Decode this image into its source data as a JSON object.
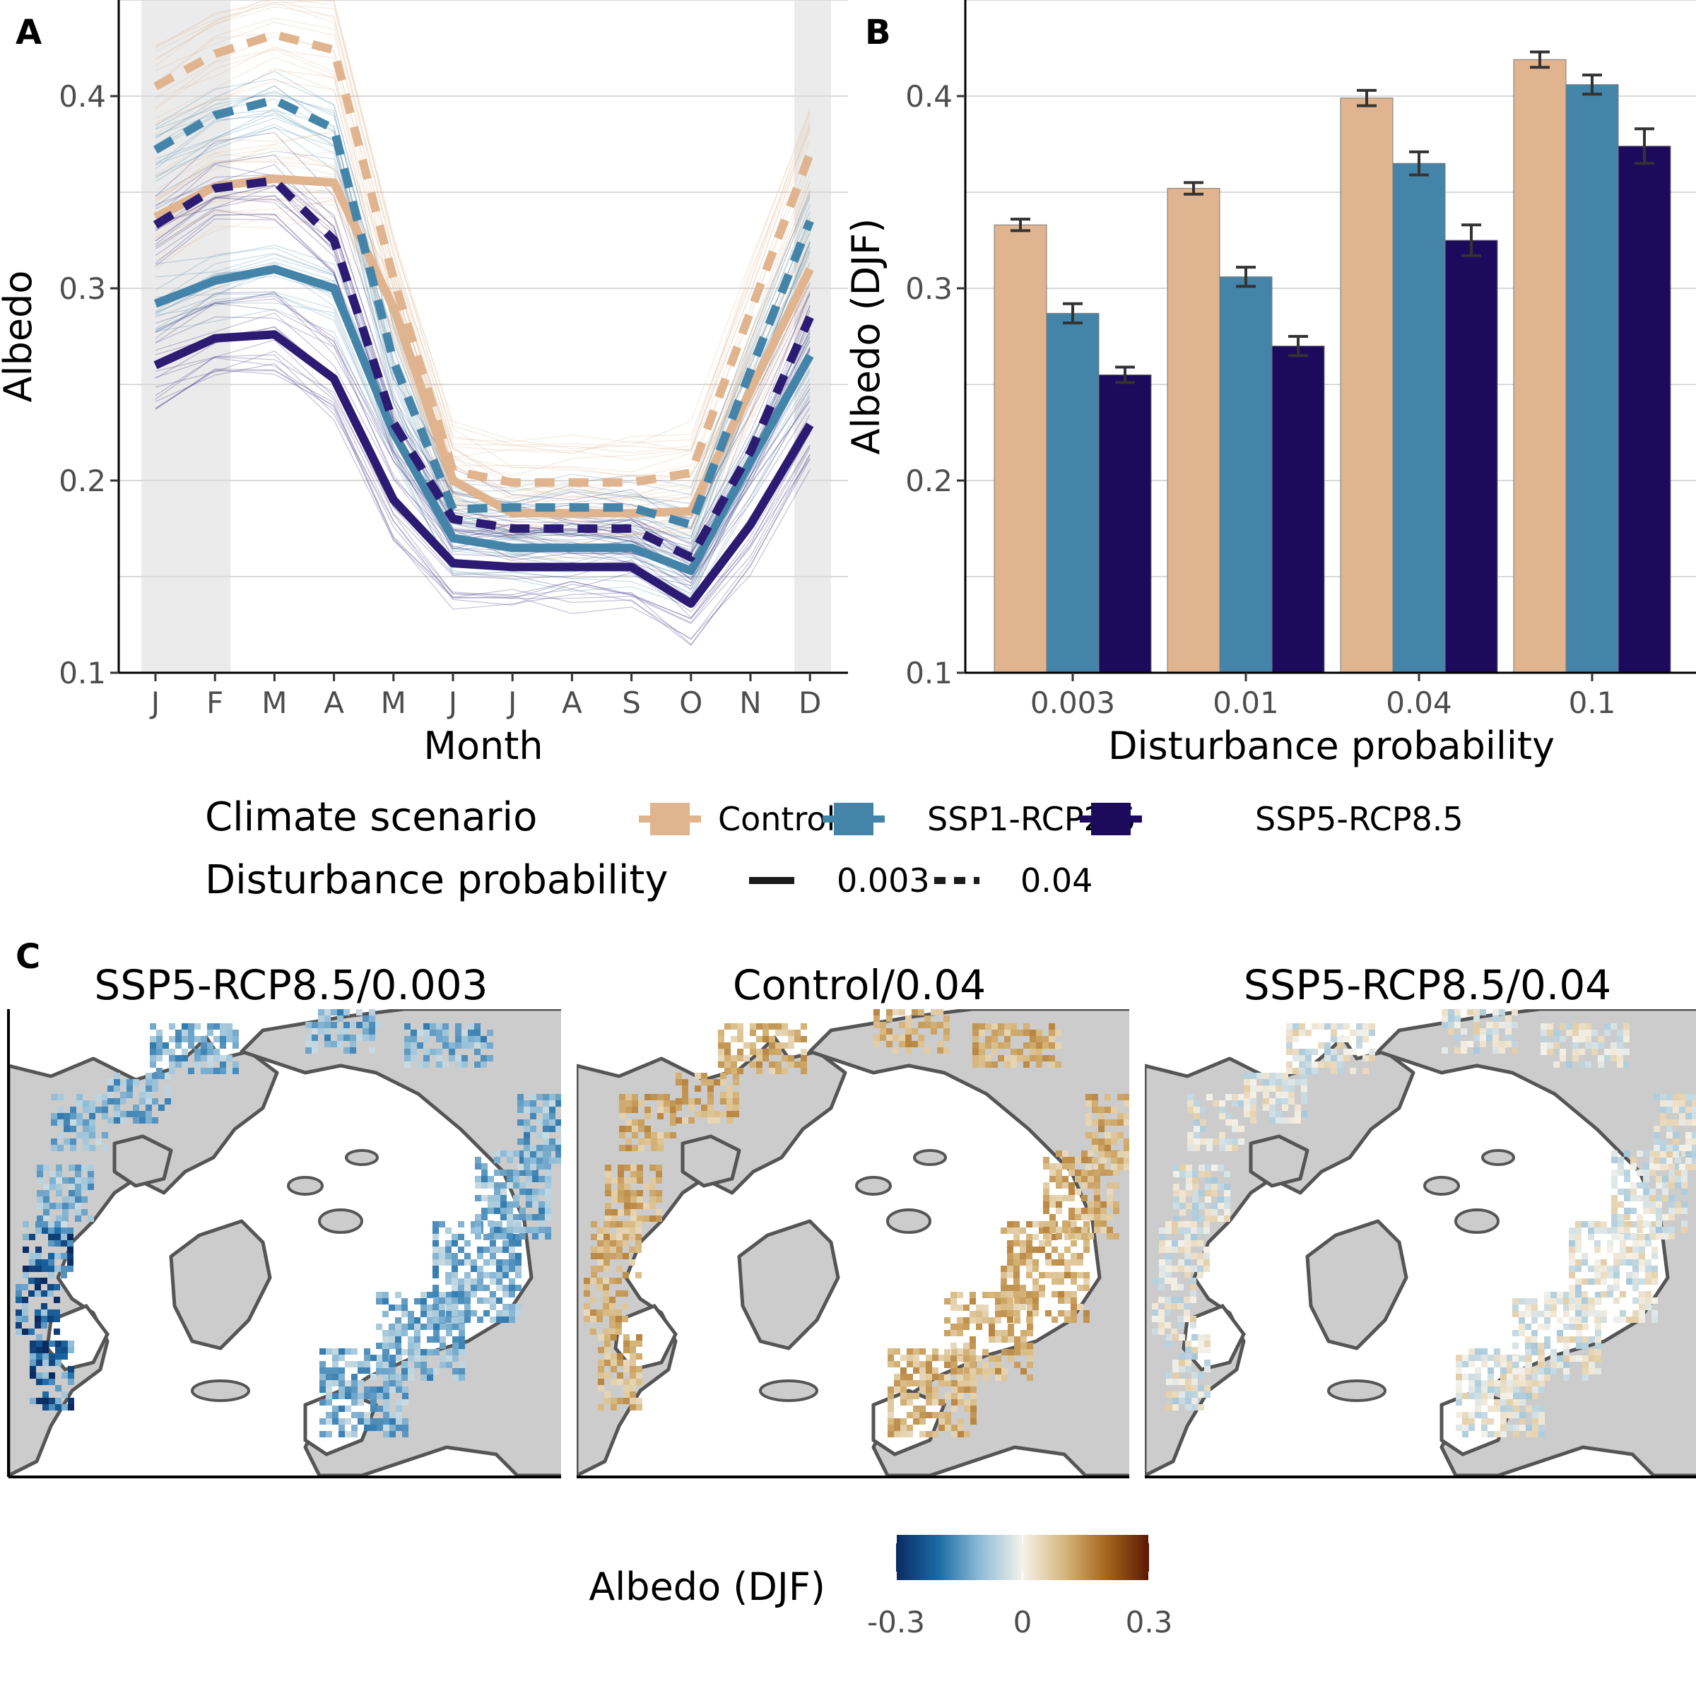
{
  "panel_labels": {
    "a": "A",
    "b": "B",
    "c": "C"
  },
  "colors": {
    "control": "#e0b48e",
    "ssp1": "#4584a9",
    "ssp5": "#1c0b5c",
    "grid": "#d9d9d9",
    "winter_shade": "#ebebeb",
    "land": "#cccccc",
    "coast": "#555555",
    "error_bar": "#333333"
  },
  "chart_data": [
    {
      "type": "line",
      "panel": "A",
      "xlabel": "Month",
      "ylabel": "Albedo",
      "x": [
        "J",
        "F",
        "M",
        "A",
        "M",
        "J",
        "J",
        "A",
        "S",
        "O",
        "N",
        "D"
      ],
      "ylim": [
        0.1,
        0.45
      ],
      "yticks": [
        0.1,
        0.2,
        0.3,
        0.4
      ],
      "grid": true,
      "shaded_months": [
        "J",
        "F",
        "D"
      ],
      "series": [
        {
          "scenario": "Control",
          "probability": "0.003",
          "color": "#e0b48e",
          "dashed": false,
          "values": [
            0.337,
            0.353,
            0.357,
            0.355,
            0.29,
            0.2,
            0.183,
            0.183,
            0.183,
            0.184,
            0.247,
            0.31
          ]
        },
        {
          "scenario": "Control",
          "probability": "0.04",
          "color": "#e0b48e",
          "dashed": true,
          "values": [
            0.405,
            0.422,
            0.432,
            0.424,
            0.305,
            0.205,
            0.199,
            0.199,
            0.199,
            0.204,
            0.288,
            0.37
          ]
        },
        {
          "scenario": "SSP1-RCP2.6",
          "probability": "0.003",
          "color": "#4584a9",
          "dashed": false,
          "values": [
            0.292,
            0.304,
            0.31,
            0.3,
            0.225,
            0.17,
            0.165,
            0.165,
            0.165,
            0.153,
            0.21,
            0.265
          ]
        },
        {
          "scenario": "SSP1-RCP2.6",
          "probability": "0.04",
          "color": "#4584a9",
          "dashed": true,
          "values": [
            0.372,
            0.39,
            0.398,
            0.383,
            0.262,
            0.185,
            0.186,
            0.186,
            0.186,
            0.177,
            0.257,
            0.335
          ]
        },
        {
          "scenario": "SSP5-RCP8.5",
          "probability": "0.003",
          "color": "#2b1b72",
          "dashed": false,
          "values": [
            0.26,
            0.274,
            0.276,
            0.253,
            0.19,
            0.157,
            0.155,
            0.155,
            0.155,
            0.136,
            0.177,
            0.229
          ]
        },
        {
          "scenario": "SSP5-RCP8.5",
          "probability": "0.04",
          "color": "#2b1b72",
          "dashed": true,
          "values": [
            0.333,
            0.352,
            0.356,
            0.325,
            0.23,
            0.18,
            0.175,
            0.175,
            0.175,
            0.16,
            0.215,
            0.285
          ]
        }
      ]
    },
    {
      "type": "bar",
      "panel": "B",
      "xlabel": "Disturbance probability",
      "ylabel": "Albedo (DJF)",
      "categories": [
        "0.003",
        "0.01",
        "0.04",
        "0.1"
      ],
      "ylim": [
        0.1,
        0.45
      ],
      "yticks": [
        0.1,
        0.2,
        0.3,
        0.4
      ],
      "grid": true,
      "series": [
        {
          "name": "Control",
          "color": "#e0b48e",
          "values": [
            0.333,
            0.352,
            0.399,
            0.419
          ],
          "errors": [
            0.003,
            0.003,
            0.004,
            0.004
          ]
        },
        {
          "name": "SSP1-RCP2.6",
          "color": "#4584a9",
          "values": [
            0.287,
            0.306,
            0.365,
            0.406
          ],
          "errors": [
            0.005,
            0.005,
            0.006,
            0.005
          ]
        },
        {
          "name": "SSP5-RCP8.5",
          "color": "#1c0b5c",
          "values": [
            0.255,
            0.27,
            0.325,
            0.374
          ],
          "errors": [
            0.004,
            0.005,
            0.008,
            0.009
          ]
        }
      ]
    },
    {
      "type": "heatmap",
      "panel": "C",
      "maps": [
        {
          "title": "SSP5-RCP8.5/0.003",
          "sign": -1
        },
        {
          "title": "Control/0.04",
          "sign": 1
        },
        {
          "title": "SSP5-RCP8.5/0.04",
          "sign": 0
        }
      ],
      "colorbar": {
        "title": "Albedo (DJF)",
        "min": -0.3,
        "max": 0.3,
        "ticks": [
          "-0.3",
          "0",
          "0.3"
        ],
        "stops": [
          "#0b2a62",
          "#1b6aa5",
          "#8fbcd7",
          "#f5f2ea",
          "#d6b57a",
          "#a4651a",
          "#5b1805"
        ]
      }
    }
  ],
  "legend": {
    "scenario_title": "Climate scenario",
    "scenarios": [
      {
        "label": "Control",
        "color": "#e0b48e"
      },
      {
        "label": "SSP1-RCP2.6",
        "color": "#4584a9"
      },
      {
        "label": "SSP5-RCP8.5",
        "color": "#1c0b5c"
      }
    ],
    "probability_title": "Disturbance probability",
    "probabilities": [
      {
        "label": "0.003",
        "dashed": false
      },
      {
        "label": "0.04",
        "dashed": true
      }
    ]
  }
}
